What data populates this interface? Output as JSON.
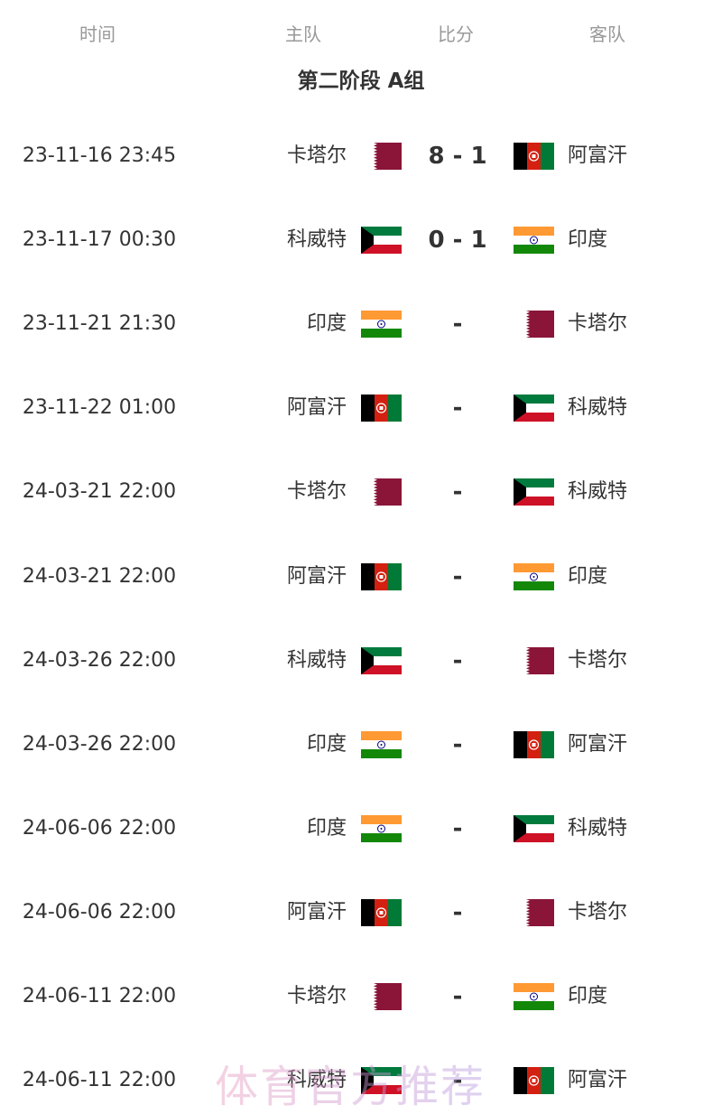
{
  "header": {
    "time": "时间",
    "home": "主队",
    "score": "比分",
    "away": "客队"
  },
  "group_title": "第二阶段 A组",
  "matches": [
    {
      "time": "23-11-16 23:45",
      "home": "卡塔尔",
      "home_flag": "qatar",
      "score": "8 - 1",
      "away": "阿富汗",
      "away_flag": "afghanistan"
    },
    {
      "time": "23-11-17 00:30",
      "home": "科威特",
      "home_flag": "kuwait",
      "score": "0 - 1",
      "away": "印度",
      "away_flag": "india"
    },
    {
      "time": "23-11-21 21:30",
      "home": "印度",
      "home_flag": "india",
      "score": "-",
      "away": "卡塔尔",
      "away_flag": "qatar"
    },
    {
      "time": "23-11-22 01:00",
      "home": "阿富汗",
      "home_flag": "afghanistan",
      "score": "-",
      "away": "科威特",
      "away_flag": "kuwait"
    },
    {
      "time": "24-03-21 22:00",
      "home": "卡塔尔",
      "home_flag": "qatar",
      "score": "-",
      "away": "科威特",
      "away_flag": "kuwait"
    },
    {
      "time": "24-03-21 22:00",
      "home": "阿富汗",
      "home_flag": "afghanistan",
      "score": "-",
      "away": "印度",
      "away_flag": "india"
    },
    {
      "time": "24-03-26 22:00",
      "home": "科威特",
      "home_flag": "kuwait",
      "score": "-",
      "away": "卡塔尔",
      "away_flag": "qatar"
    },
    {
      "time": "24-03-26 22:00",
      "home": "印度",
      "home_flag": "india",
      "score": "-",
      "away": "阿富汗",
      "away_flag": "afghanistan"
    },
    {
      "time": "24-06-06 22:00",
      "home": "印度",
      "home_flag": "india",
      "score": "-",
      "away": "科威特",
      "away_flag": "kuwait"
    },
    {
      "time": "24-06-06 22:00",
      "home": "阿富汗",
      "home_flag": "afghanistan",
      "score": "-",
      "away": "卡塔尔",
      "away_flag": "qatar"
    },
    {
      "time": "24-06-11 22:00",
      "home": "卡塔尔",
      "home_flag": "qatar",
      "score": "-",
      "away": "印度",
      "away_flag": "india"
    },
    {
      "time": "24-06-11 22:00",
      "home": "科威特",
      "home_flag": "kuwait",
      "score": "-",
      "away": "阿富汗",
      "away_flag": "afghanistan"
    }
  ],
  "watermark": "体育官方推荐"
}
